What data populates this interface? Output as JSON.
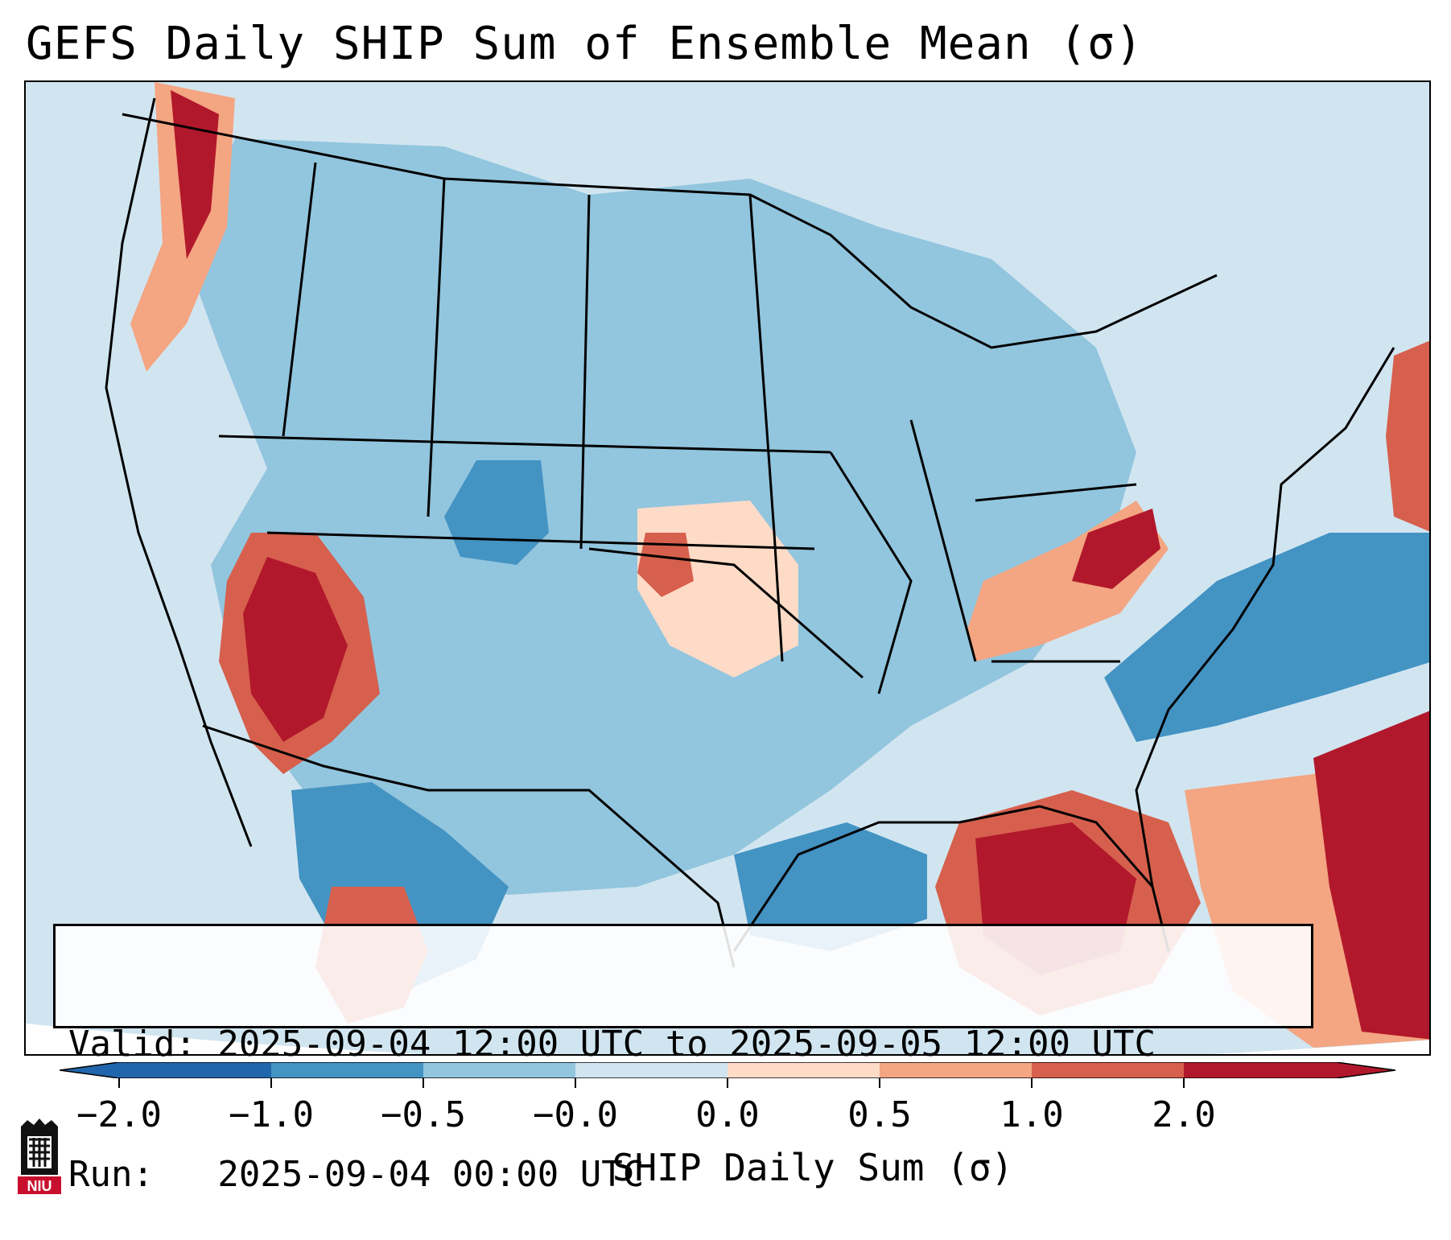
{
  "title": "GEFS Daily SHIP Sum of Ensemble Mean (σ)",
  "info": {
    "valid": "Valid: 2025-09-04 12:00 UTC to 2025-09-05 12:00 UTC",
    "run": "Run:   2025-09-04 00:00 UTC"
  },
  "colorbar": {
    "label": "SHIP Daily Sum (σ)",
    "ticks": [
      "−2.0",
      "−1.0",
      "−0.5",
      "−0.0",
      "0.0",
      "0.5",
      "1.0",
      "2.0"
    ],
    "colors": [
      "#2166ac",
      "#4393c3",
      "#92c5de",
      "#d1e5f0",
      "#fddbc7",
      "#f4a582",
      "#d6604d",
      "#b2182b"
    ],
    "extend": "both"
  },
  "logo": {
    "text": "NIU",
    "icon": "niu-logo-icon"
  }
}
